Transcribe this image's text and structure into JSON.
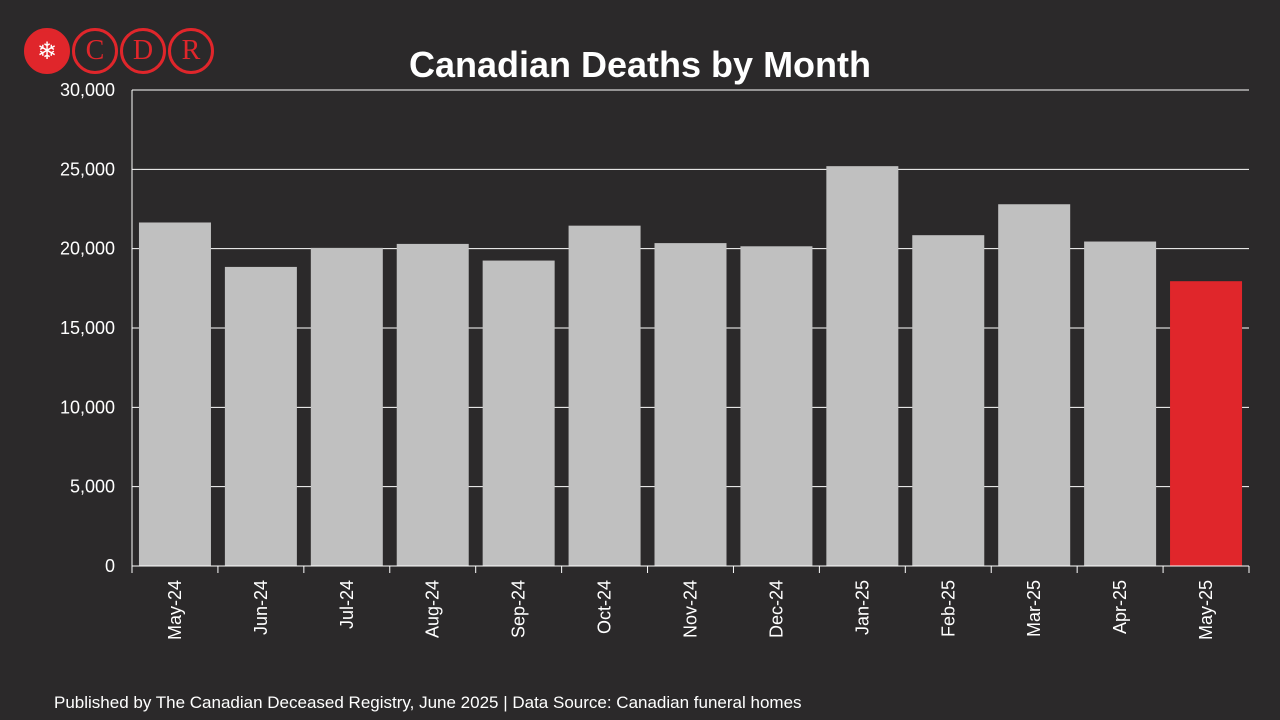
{
  "logo": {
    "letters": [
      "C",
      "D",
      "R"
    ],
    "icon": "maple-leaf-icon"
  },
  "chart_data": {
    "type": "bar",
    "title": "Canadian Deaths by Month",
    "categories": [
      "May-24",
      "Jun-24",
      "Jul-24",
      "Aug-24",
      "Sep-24",
      "Oct-24",
      "Nov-24",
      "Dec-24",
      "Jan-25",
      "Feb-25",
      "Mar-25",
      "Apr-25",
      "May-25"
    ],
    "values": [
      21650,
      18850,
      20050,
      20300,
      19250,
      21450,
      20350,
      20150,
      25200,
      20850,
      22800,
      20450,
      17950
    ],
    "highlight_index": 12,
    "ylim": [
      0,
      30000
    ],
    "yticks": [
      0,
      5000,
      10000,
      15000,
      20000,
      25000,
      30000
    ],
    "ytick_labels": [
      "0",
      "5,000",
      "10,000",
      "15,000",
      "20,000",
      "25,000",
      "30,000"
    ],
    "xlabel": "",
    "ylabel": "",
    "grid": true,
    "colors": {
      "bar": "#c0c0c0",
      "highlight": "#e0262b",
      "grid": "#ffffff",
      "background": "#2b292a"
    }
  },
  "footer": "Published by The Canadian Deceased Registry, June 2025 | Data Source: Canadian funeral homes"
}
